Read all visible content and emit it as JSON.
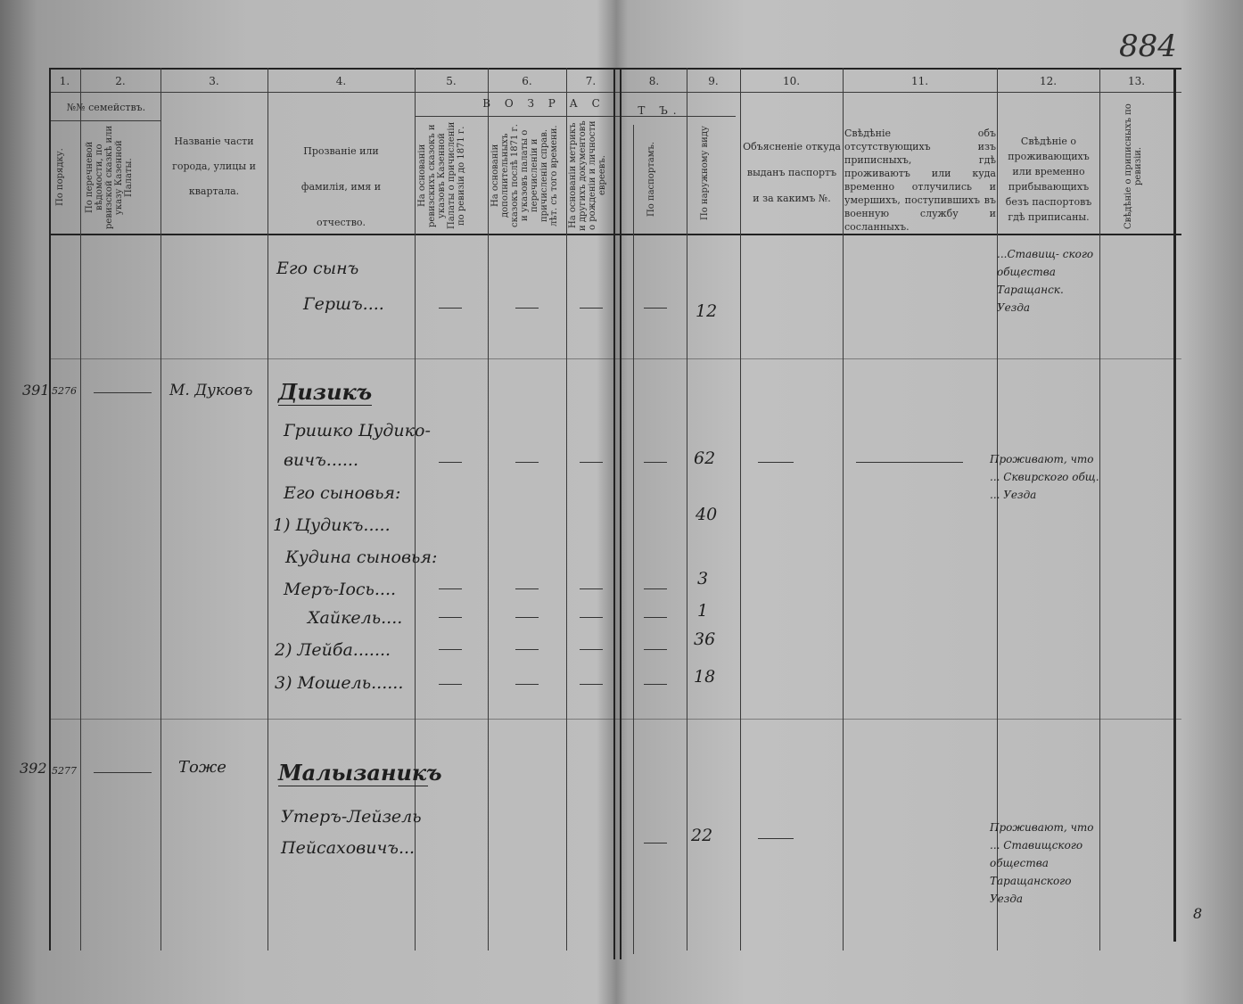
{
  "page_stamp": "884",
  "corner_mark": "8",
  "header": {
    "column_numbers": [
      "1.",
      "2.",
      "3.",
      "4.",
      "5.",
      "6.",
      "7.",
      "8.",
      "9.",
      "10.",
      "11.",
      "12.",
      "13."
    ],
    "families_group": "№№ семействъ.",
    "age_group_left": "В О З Р А С",
    "age_group_right": "Т Ъ.",
    "col1": "По порядку.",
    "col2": "По перечневой вѣдомости, по ревизской сказкѣ или указу Казенной Палаты.",
    "col3": "Названіе части города, улицы и квартала.",
    "col4": "Прозваніе или фамилія, имя и отчество.",
    "col5": "На основаніи ревизскихъ сказокъ и указовъ Казенной Палаты о причисленіи по ревизіи до 1871 г.",
    "col6": "На основаніи дополнительныхъ сказокъ послѣ 1871 г. и указовъ палаты о перечисленіи и причисленіи справ. лѣт. съ того времени.",
    "col7": "На основаніи метрикъ и другихъ документовъ о рожденіи и личности евреевъ.",
    "col8": "По паспортамъ.",
    "col9": "По наружному виду",
    "col10": "Объясненіе откуда выданъ паспортъ и за какимъ №.",
    "col11": "Свѣдѣніе объ отсутствующихъ изъ приписныхъ, гдѣ проживаютъ или куда временно отлучились и умершихъ, поступившихъ въ военную службу и сосланныхъ.",
    "col12": "Свѣдѣніе о проживающихъ или временно прибывающихъ безъ паспортовъ гдѣ приписаны.",
    "col13": "Свѣдѣніе о приписныхъ по ревизіи."
  },
  "entries": [
    {
      "lines": [
        "Его сынъ",
        "Гершъ...."
      ],
      "ages": [
        "12"
      ],
      "note": "...Ставищ- ского общества Таращанск. Уезда"
    },
    {
      "order": "391",
      "rev": "5276",
      "place": "М. Дуковъ",
      "surname": "Дизикъ",
      "lines": [
        "Гришко Цудико-",
        "вичъ......",
        "Его сыновья:",
        "1) Цудикъ.....",
        "Кудина сыновья:",
        "Меръ-Іось....",
        "Хайкель....",
        "2) Лейба.......",
        "3) Мошель......"
      ],
      "ages": [
        "62",
        "40",
        "3",
        "1",
        "36",
        "18"
      ],
      "note": "Проживают, что ... Сквирского общ. ... Уезда"
    },
    {
      "order": "392",
      "rev": "5277",
      "place": "Тоже",
      "surname": "Малызаникъ",
      "lines": [
        "Утеръ-Лейзель",
        "Пейсаховичъ..."
      ],
      "ages": [
        "22"
      ],
      "note": "Проживают, что ... Ставищского общества Таращанского Уезда"
    }
  ]
}
